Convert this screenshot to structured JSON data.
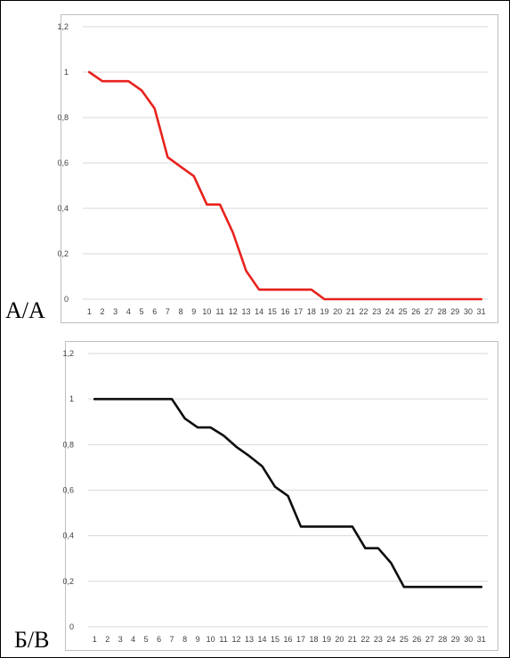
{
  "chart_data": [
    {
      "type": "line",
      "panel_label": "А/А",
      "categories": [
        1,
        2,
        3,
        4,
        5,
        6,
        7,
        8,
        9,
        10,
        11,
        12,
        13,
        14,
        15,
        16,
        17,
        18,
        19,
        20,
        21,
        22,
        23,
        24,
        25,
        26,
        27,
        28,
        29,
        30,
        31
      ],
      "y_ticks": [
        "0",
        "0,2",
        "0,4",
        "0,6",
        "0,8",
        "1",
        "1,2"
      ],
      "ylim": [
        0,
        1.2
      ],
      "grid": true,
      "legend": "none",
      "color": "#e8221d",
      "series": [
        {
          "values": [
            1,
            0.96,
            0.96,
            0.96,
            0.92,
            0.84,
            0.625,
            0.583,
            0.542,
            0.417,
            0.417,
            0.292,
            0.125,
            0.042,
            0.042,
            0.042,
            0.042,
            0.042,
            0,
            0,
            0,
            0,
            0,
            0,
            0,
            0,
            0,
            0,
            0,
            0,
            0
          ]
        }
      ]
    },
    {
      "type": "line",
      "panel_label": "Б/В",
      "categories": [
        1,
        2,
        3,
        4,
        5,
        6,
        7,
        8,
        9,
        10,
        11,
        12,
        13,
        14,
        15,
        16,
        17,
        18,
        19,
        20,
        21,
        22,
        23,
        24,
        25,
        26,
        27,
        28,
        29,
        30,
        31
      ],
      "y_ticks": [
        "0",
        "0,2",
        "0,4",
        "0,6",
        "0,8",
        "1",
        "1,2"
      ],
      "ylim": [
        0,
        1.2
      ],
      "grid": true,
      "legend": "none",
      "color": "#0d0d0d",
      "series": [
        {
          "values": [
            1,
            1,
            1,
            1,
            1,
            1,
            1,
            0.915,
            0.875,
            0.875,
            0.84,
            0.79,
            0.75,
            0.705,
            0.615,
            0.575,
            0.44,
            0.44,
            0.44,
            0.44,
            0.44,
            0.345,
            0.345,
            0.28,
            0.175,
            0.175,
            0.175,
            0.175,
            0.175,
            0.175,
            0.175
          ]
        }
      ]
    }
  ]
}
